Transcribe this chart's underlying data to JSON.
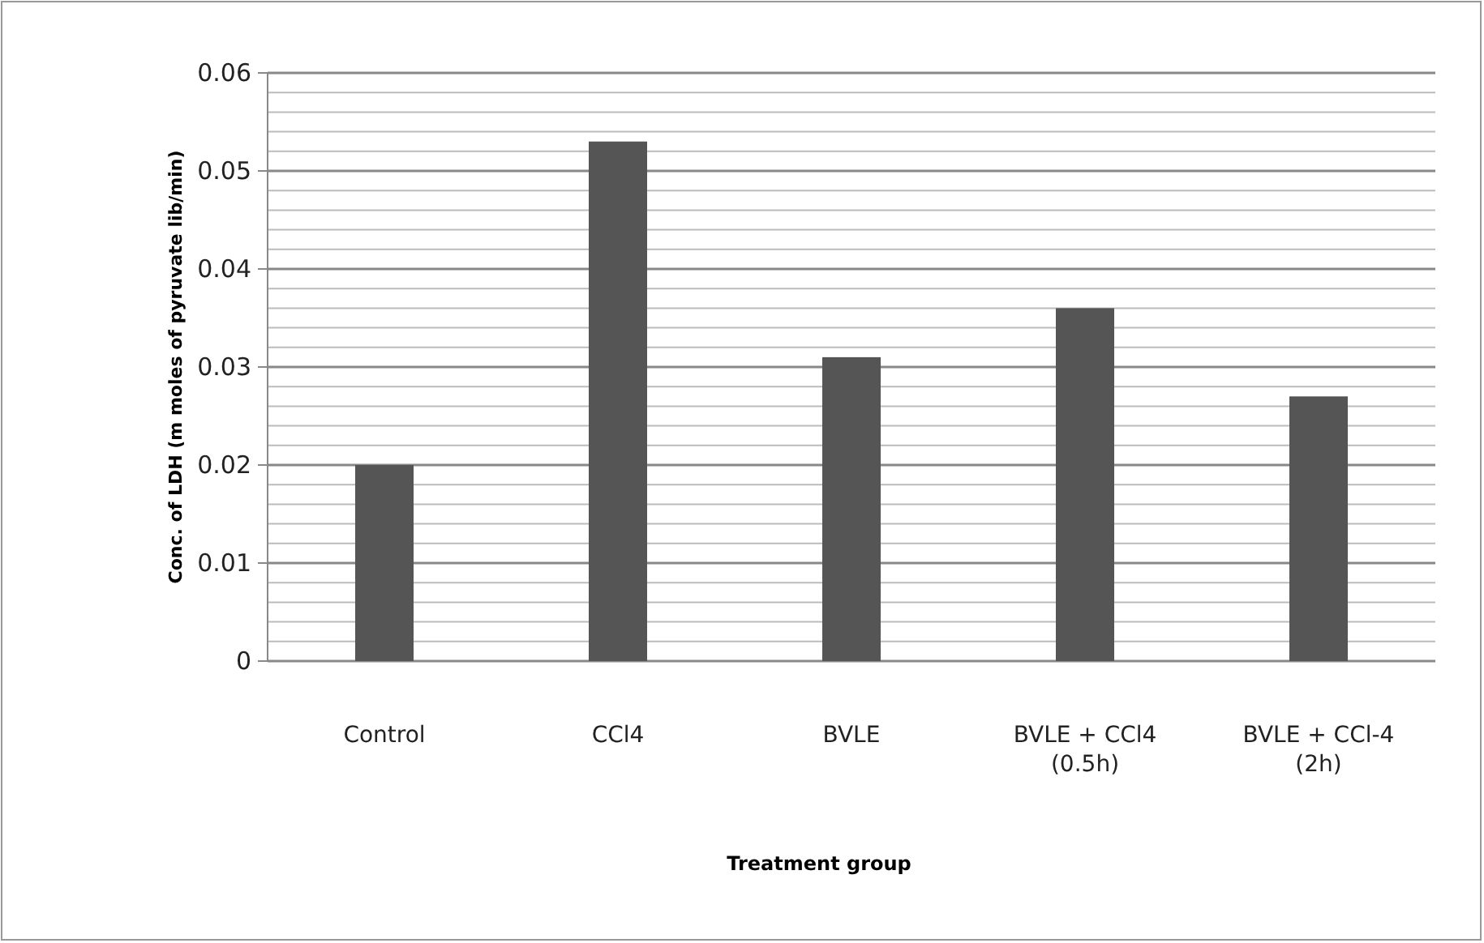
{
  "chart_data": {
    "type": "bar",
    "xlabel": "Treatment group",
    "ylabel": "Conc. of LDH (m moles of pyruvate lib/min)",
    "categories": [
      "Control",
      "CCl4",
      "BVLE",
      "BVLE + CCl4 (0.5h)",
      "BVLE + CCl-4 (2h)"
    ],
    "values": [
      0.02,
      0.053,
      0.031,
      0.036,
      0.027
    ],
    "color": "#555555",
    "ylim": [
      0,
      0.06
    ],
    "yticks": [
      0,
      {
        "value": 0.002,
        "label": null
      },
      {
        "value": 0.004,
        "label": null
      },
      {
        "value": 0.006,
        "label": null
      },
      {
        "value": 0.008,
        "label": null
      },
      0.01,
      {
        "value": 0.012,
        "label": null
      },
      {
        "value": 0.014,
        "label": null
      },
      {
        "value": 0.016,
        "label": null
      },
      {
        "value": 0.018,
        "label": null
      },
      0.02,
      {
        "value": 0.022,
        "label": null
      },
      {
        "value": 0.024,
        "label": null
      },
      {
        "value": 0.026,
        "label": null
      },
      {
        "value": 0.028,
        "label": null
      },
      0.03,
      {
        "value": 0.032,
        "label": null
      },
      {
        "value": 0.034,
        "label": null
      },
      {
        "value": 0.036,
        "label": null
      },
      {
        "value": 0.038,
        "label": null
      },
      0.04,
      {
        "value": 0.042,
        "label": null
      },
      {
        "value": 0.044,
        "label": null
      },
      {
        "value": 0.046,
        "label": null
      },
      {
        "value": 0.048,
        "label": null
      },
      0.05,
      {
        "value": 0.052,
        "label": null
      },
      {
        "value": 0.054,
        "label": null
      },
      {
        "value": 0.056,
        "label": null
      },
      {
        "value": 0.058,
        "label": null
      },
      0.06
    ],
    "grid": true
  }
}
